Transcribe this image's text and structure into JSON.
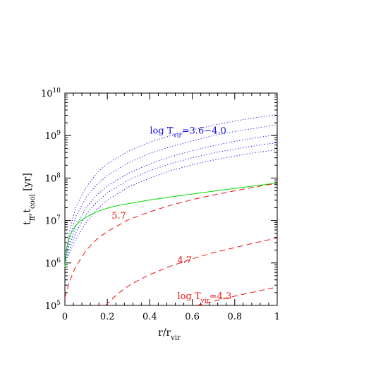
{
  "chart_data": {
    "type": "line",
    "xlabel": {
      "main": "r/r",
      "sub": "vir"
    },
    "ylabel": {
      "parts": [
        [
          "t",
          ""
        ],
        [
          "ff",
          "sub"
        ],
        [
          ",t",
          ""
        ],
        [
          "cool",
          "sub"
        ],
        [
          " [yr]",
          ""
        ]
      ]
    },
    "xlim": [
      0,
      1
    ],
    "ylim_log10": [
      5,
      10
    ],
    "y_scale": "log",
    "x_ticks": [
      {
        "value": 0,
        "label": "0"
      },
      {
        "value": 0.2,
        "label": "0.2"
      },
      {
        "value": 0.4,
        "label": "0.4"
      },
      {
        "value": 0.6,
        "label": "0.6"
      },
      {
        "value": 0.8,
        "label": "0.8"
      },
      {
        "value": 1,
        "label": "1"
      }
    ],
    "y_ticks": [
      {
        "exp": 5,
        "base": "10",
        "sup": "5"
      },
      {
        "exp": 6,
        "base": "10",
        "sup": "6"
      },
      {
        "exp": 7,
        "base": "10",
        "sup": "7"
      },
      {
        "exp": 8,
        "base": "10",
        "sup": "8"
      },
      {
        "exp": 9,
        "base": "10",
        "sup": "9"
      },
      {
        "exp": 10,
        "base": "10",
        "sup": "10"
      }
    ],
    "grid": false,
    "colors": {
      "blue": "#1010e0",
      "green": "#00dd00",
      "red": "#ee1111",
      "axis": "#000000"
    },
    "series": [
      {
        "color": "blue",
        "style": "dotted",
        "x": [
          0.0,
          0.02,
          0.05,
          0.1,
          0.15,
          0.2,
          0.3,
          0.4,
          0.5,
          0.6,
          0.7,
          0.8,
          0.9,
          1.0
        ],
        "y": [
          1000000.0,
          5000000.0,
          20000000.0,
          60000000.0,
          130000000.0,
          220000000.0,
          430000000.0,
          700000000.0,
          1000000000.0,
          1350000000.0,
          1750000000.0,
          2200000000.0,
          2650000000.0,
          3100000000.0
        ]
      },
      {
        "color": "blue",
        "style": "dotted",
        "x": [
          0.0,
          0.02,
          0.05,
          0.1,
          0.15,
          0.2,
          0.3,
          0.4,
          0.5,
          0.6,
          0.7,
          0.8,
          0.9,
          1.0
        ],
        "y": [
          1000000.0,
          3300000.0,
          12000000.0,
          35000000.0,
          70000000.0,
          115000000.0,
          230000000.0,
          380000000.0,
          550000000.0,
          750000000.0,
          1000000000.0,
          1250000000.0,
          1500000000.0,
          1800000000.0
        ]
      },
      {
        "color": "blue",
        "style": "dotted",
        "x": [
          0.0,
          0.02,
          0.05,
          0.1,
          0.15,
          0.2,
          0.3,
          0.4,
          0.5,
          0.6,
          0.7,
          0.8,
          0.9,
          1.0
        ],
        "y": [
          1000000.0,
          2500000.0,
          7000000.0,
          20000000.0,
          40000000.0,
          65000000.0,
          130000000.0,
          215000000.0,
          320000000.0,
          440000000.0,
          580000000.0,
          730000000.0,
          890000000.0,
          1050000000.0
        ]
      },
      {
        "color": "blue",
        "style": "dotted",
        "x": [
          0.0,
          0.02,
          0.05,
          0.1,
          0.15,
          0.2,
          0.3,
          0.4,
          0.5,
          0.6,
          0.7,
          0.8,
          0.9,
          1.0
        ],
        "y": [
          1000000.0,
          2000000.0,
          5000000.0,
          14000000.0,
          27000000.0,
          45000000.0,
          90000000.0,
          150000000.0,
          220000000.0,
          300000000.0,
          390000000.0,
          480000000.0,
          580000000.0,
          680000000.0
        ]
      },
      {
        "color": "blue",
        "style": "dotted",
        "x": [
          0.0,
          0.02,
          0.05,
          0.1,
          0.15,
          0.2,
          0.3,
          0.4,
          0.5,
          0.6,
          0.7,
          0.8,
          0.9,
          1.0
        ],
        "y": [
          1000000.0,
          1600000.0,
          3500000.0,
          9000000.0,
          18000000.0,
          30000000.0,
          62000000.0,
          100000000.0,
          150000000.0,
          205000000.0,
          265000000.0,
          330000000.0,
          400000000.0,
          460000000.0
        ]
      },
      {
        "color": "green",
        "style": "solid",
        "x": [
          0.0,
          0.005,
          0.01,
          0.02,
          0.03,
          0.05,
          0.07,
          0.1,
          0.15,
          0.2,
          0.25,
          0.3,
          0.4,
          0.5,
          0.6,
          0.7,
          0.8,
          0.9,
          1.0
        ],
        "y": [
          800000.0,
          1600000.0,
          2500000.0,
          4000000.0,
          5200000.0,
          7500000.0,
          9500000.0,
          12000000.0,
          16000000.0,
          19500000.0,
          22500000.0,
          25000000.0,
          30500000.0,
          36000000.0,
          42000000.0,
          49000000.0,
          57000000.0,
          66000000.0,
          76000000.0
        ]
      },
      {
        "color": "red",
        "style": "dashed",
        "x": [
          0.0,
          0.02,
          0.05,
          0.1,
          0.15,
          0.2,
          0.3,
          0.4,
          0.5,
          0.6,
          0.7,
          0.8,
          0.9,
          1.0
        ],
        "y": [
          150000.0,
          350000.0,
          800000.0,
          2000000.0,
          3600000.0,
          5500000.0,
          10500000.0,
          16000000.0,
          23000000.0,
          31000000.0,
          40000000.0,
          50000000.0,
          62000000.0,
          75000000.0
        ]
      },
      {
        "color": "red",
        "style": "dashed",
        "x": [
          0.19,
          0.2,
          0.25,
          0.3,
          0.35,
          0.4,
          0.5,
          0.6,
          0.7,
          0.8,
          0.9,
          1.0
        ],
        "y": [
          100000.0,
          110000.0,
          190000.0,
          290000.0,
          400000.0,
          530000.0,
          850000.0,
          1250000.0,
          1750000.0,
          2300000.0,
          3000000.0,
          3900000.0
        ]
      },
      {
        "color": "red",
        "style": "dashed",
        "x": [
          0.62,
          0.65,
          0.7,
          0.75,
          0.8,
          0.85,
          0.9,
          0.95,
          1.0
        ],
        "y": [
          100000.0,
          108000.0,
          125000.0,
          145000.0,
          165000.0,
          188000.0,
          212000.0,
          240000.0,
          270000.0
        ]
      }
    ],
    "annotations": [
      {
        "color": "blue",
        "x": 0.4,
        "y": 1100000000.0,
        "parts": [
          [
            "log T",
            ""
          ],
          [
            "vir",
            "sub"
          ],
          [
            "=3.6−4.0",
            ""
          ]
        ]
      },
      {
        "color": "red",
        "x": 0.22,
        "y": 11000000.0,
        "parts": [
          [
            "5.7",
            ""
          ]
        ]
      },
      {
        "color": "red",
        "x": 0.53,
        "y": 1000000.0,
        "parts": [
          [
            "4.7",
            ""
          ]
        ]
      },
      {
        "color": "red",
        "x": 0.53,
        "y": 140000.0,
        "parts": [
          [
            "log T",
            ""
          ],
          [
            "vir",
            "sub"
          ],
          [
            "=4.3",
            ""
          ]
        ]
      }
    ]
  }
}
